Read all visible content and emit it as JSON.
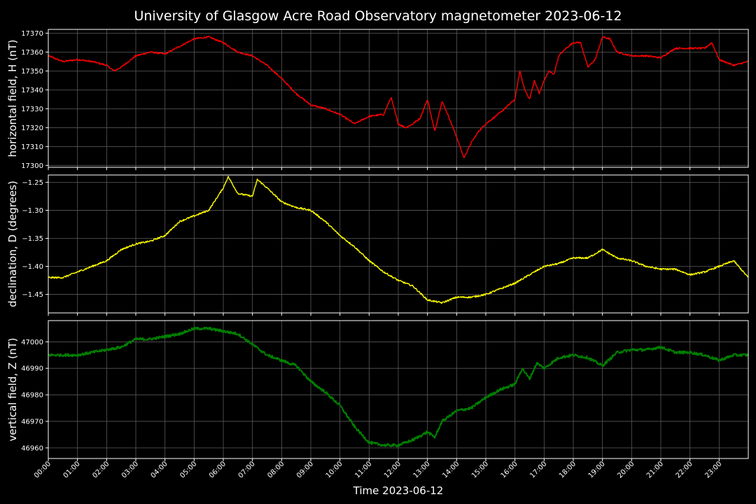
{
  "chart_data": {
    "type": "line",
    "title": "University of Glasgow Acre Road Observatory magnetometer 2023-06-12",
    "xlabel": "Time 2023-06-12",
    "x_ticks": [
      "00:00",
      "01:00",
      "02:00",
      "03:00",
      "04:00",
      "05:00",
      "06:00",
      "07:00",
      "08:00",
      "09:00",
      "10:00",
      "11:00",
      "12:00",
      "13:00",
      "14:00",
      "15:00",
      "16:00",
      "17:00",
      "18:00",
      "19:00",
      "20:00",
      "21:00",
      "22:00",
      "23:00"
    ],
    "xlim": [
      "00:00",
      "24:00"
    ],
    "grid": true,
    "panels": [
      {
        "ylabel": "horizontal field, H (nT)",
        "color": "#ff0000",
        "ylim": [
          17299,
          17372
        ],
        "y_ticks": [
          "17300",
          "17310",
          "17320",
          "17330",
          "17340",
          "17350",
          "17360",
          "17370"
        ],
        "y_tick_values": [
          17300,
          17310,
          17320,
          17330,
          17340,
          17350,
          17360,
          17370
        ],
        "series": {
          "x": [
            "00:00",
            "00:30",
            "01:00",
            "01:30",
            "02:00",
            "02:15",
            "02:30",
            "03:00",
            "03:30",
            "04:00",
            "04:30",
            "05:00",
            "05:30",
            "06:00",
            "06:30",
            "07:00",
            "07:30",
            "08:00",
            "08:30",
            "09:00",
            "09:30",
            "10:00",
            "10:30",
            "11:00",
            "11:30",
            "11:45",
            "12:00",
            "12:15",
            "12:30",
            "12:45",
            "13:00",
            "13:15",
            "13:30",
            "13:45",
            "14:00",
            "14:15",
            "14:30",
            "14:45",
            "15:00",
            "15:30",
            "16:00",
            "16:10",
            "16:20",
            "16:30",
            "16:40",
            "16:50",
            "17:00",
            "17:10",
            "17:20",
            "17:30",
            "17:45",
            "18:00",
            "18:15",
            "18:30",
            "18:45",
            "19:00",
            "19:15",
            "19:30",
            "20:00",
            "20:30",
            "21:00",
            "21:30",
            "22:00",
            "22:30",
            "22:45",
            "23:00",
            "23:30",
            "24:00"
          ],
          "y": [
            17358,
            17355,
            17356,
            17355,
            17353,
            17350,
            17352,
            17358,
            17360,
            17359,
            17363,
            17367,
            17368,
            17365,
            17360,
            17358,
            17353,
            17346,
            17338,
            17332,
            17330,
            17327,
            17322,
            17326,
            17327,
            17336,
            17322,
            17320,
            17322,
            17325,
            17335,
            17318,
            17334,
            17325,
            17315,
            17304,
            17312,
            17318,
            17322,
            17328,
            17335,
            17350,
            17340,
            17335,
            17345,
            17338,
            17345,
            17350,
            17348,
            17358,
            17362,
            17365,
            17365,
            17352,
            17356,
            17368,
            17367,
            17360,
            17358,
            17358,
            17357,
            17362,
            17362,
            17362,
            17365,
            17356,
            17353,
            17355
          ]
        }
      },
      {
        "ylabel": "declination, D (degrees)",
        "color": "#ffff00",
        "ylim": [
          -1.483,
          -1.237
        ],
        "y_ticks": [
          "−1.25",
          "−1.30",
          "−1.35",
          "−1.40",
          "−1.45"
        ],
        "y_tick_values": [
          -1.25,
          -1.3,
          -1.35,
          -1.4,
          -1.45
        ],
        "series": {
          "x": [
            "00:00",
            "00:30",
            "01:00",
            "01:30",
            "02:00",
            "02:30",
            "03:00",
            "03:30",
            "04:00",
            "04:30",
            "05:00",
            "05:30",
            "06:00",
            "06:10",
            "06:30",
            "07:00",
            "07:10",
            "07:30",
            "08:00",
            "08:30",
            "09:00",
            "09:30",
            "10:00",
            "10:30",
            "11:00",
            "11:30",
            "12:00",
            "12:30",
            "13:00",
            "13:30",
            "14:00",
            "14:30",
            "15:00",
            "15:30",
            "16:00",
            "16:30",
            "17:00",
            "17:30",
            "18:00",
            "18:30",
            "19:00",
            "19:30",
            "20:00",
            "20:30",
            "21:00",
            "21:30",
            "22:00",
            "22:30",
            "23:00",
            "23:30",
            "24:00"
          ],
          "y": [
            -1.42,
            -1.42,
            -1.41,
            -1.4,
            -1.39,
            -1.37,
            -1.36,
            -1.355,
            -1.345,
            -1.32,
            -1.31,
            -1.3,
            -1.26,
            -1.24,
            -1.27,
            -1.275,
            -1.245,
            -1.26,
            -1.285,
            -1.295,
            -1.3,
            -1.32,
            -1.345,
            -1.365,
            -1.39,
            -1.41,
            -1.425,
            -1.435,
            -1.46,
            -1.465,
            -1.455,
            -1.455,
            -1.45,
            -1.44,
            -1.43,
            -1.415,
            -1.4,
            -1.395,
            -1.385,
            -1.385,
            -1.37,
            -1.385,
            -1.39,
            -1.4,
            -1.405,
            -1.405,
            -1.415,
            -1.41,
            -1.4,
            -1.39,
            -1.42
          ]
        }
      },
      {
        "ylabel": "vertical field, Z (nT)",
        "color": "#008000",
        "ylim": [
          46956,
          47008
        ],
        "y_ticks": [
          "46960",
          "46970",
          "46980",
          "46990",
          "47000"
        ],
        "y_tick_values": [
          46960,
          46970,
          46980,
          46990,
          47000
        ],
        "series": {
          "x": [
            "00:00",
            "00:30",
            "01:00",
            "01:30",
            "02:00",
            "02:30",
            "03:00",
            "03:30",
            "04:00",
            "04:30",
            "05:00",
            "05:30",
            "06:00",
            "06:30",
            "07:00",
            "07:30",
            "08:00",
            "08:30",
            "09:00",
            "09:30",
            "10:00",
            "10:30",
            "11:00",
            "11:30",
            "12:00",
            "12:30",
            "13:00",
            "13:15",
            "13:30",
            "14:00",
            "14:30",
            "15:00",
            "15:30",
            "16:00",
            "16:15",
            "16:30",
            "16:45",
            "17:00",
            "17:15",
            "17:30",
            "18:00",
            "18:30",
            "19:00",
            "19:30",
            "20:00",
            "20:30",
            "21:00",
            "21:30",
            "22:00",
            "22:30",
            "23:00",
            "23:30",
            "24:00"
          ],
          "y": [
            46995,
            46995,
            46995,
            46996,
            46997,
            46998,
            47001,
            47001,
            47002,
            47003,
            47005,
            47005,
            47004,
            47003,
            46999,
            46995,
            46993,
            46991,
            46985,
            46981,
            46976,
            46968,
            46962,
            46961,
            46961,
            46963,
            46966,
            46964,
            46970,
            46974,
            46975,
            46979,
            46982,
            46984,
            46990,
            46986,
            46992,
            46990,
            46992,
            46994,
            46995,
            46994,
            46991,
            46996,
            46997,
            46997,
            46998,
            46996,
            46996,
            46995,
            46993,
            46995,
            46995
          ]
        }
      }
    ]
  }
}
